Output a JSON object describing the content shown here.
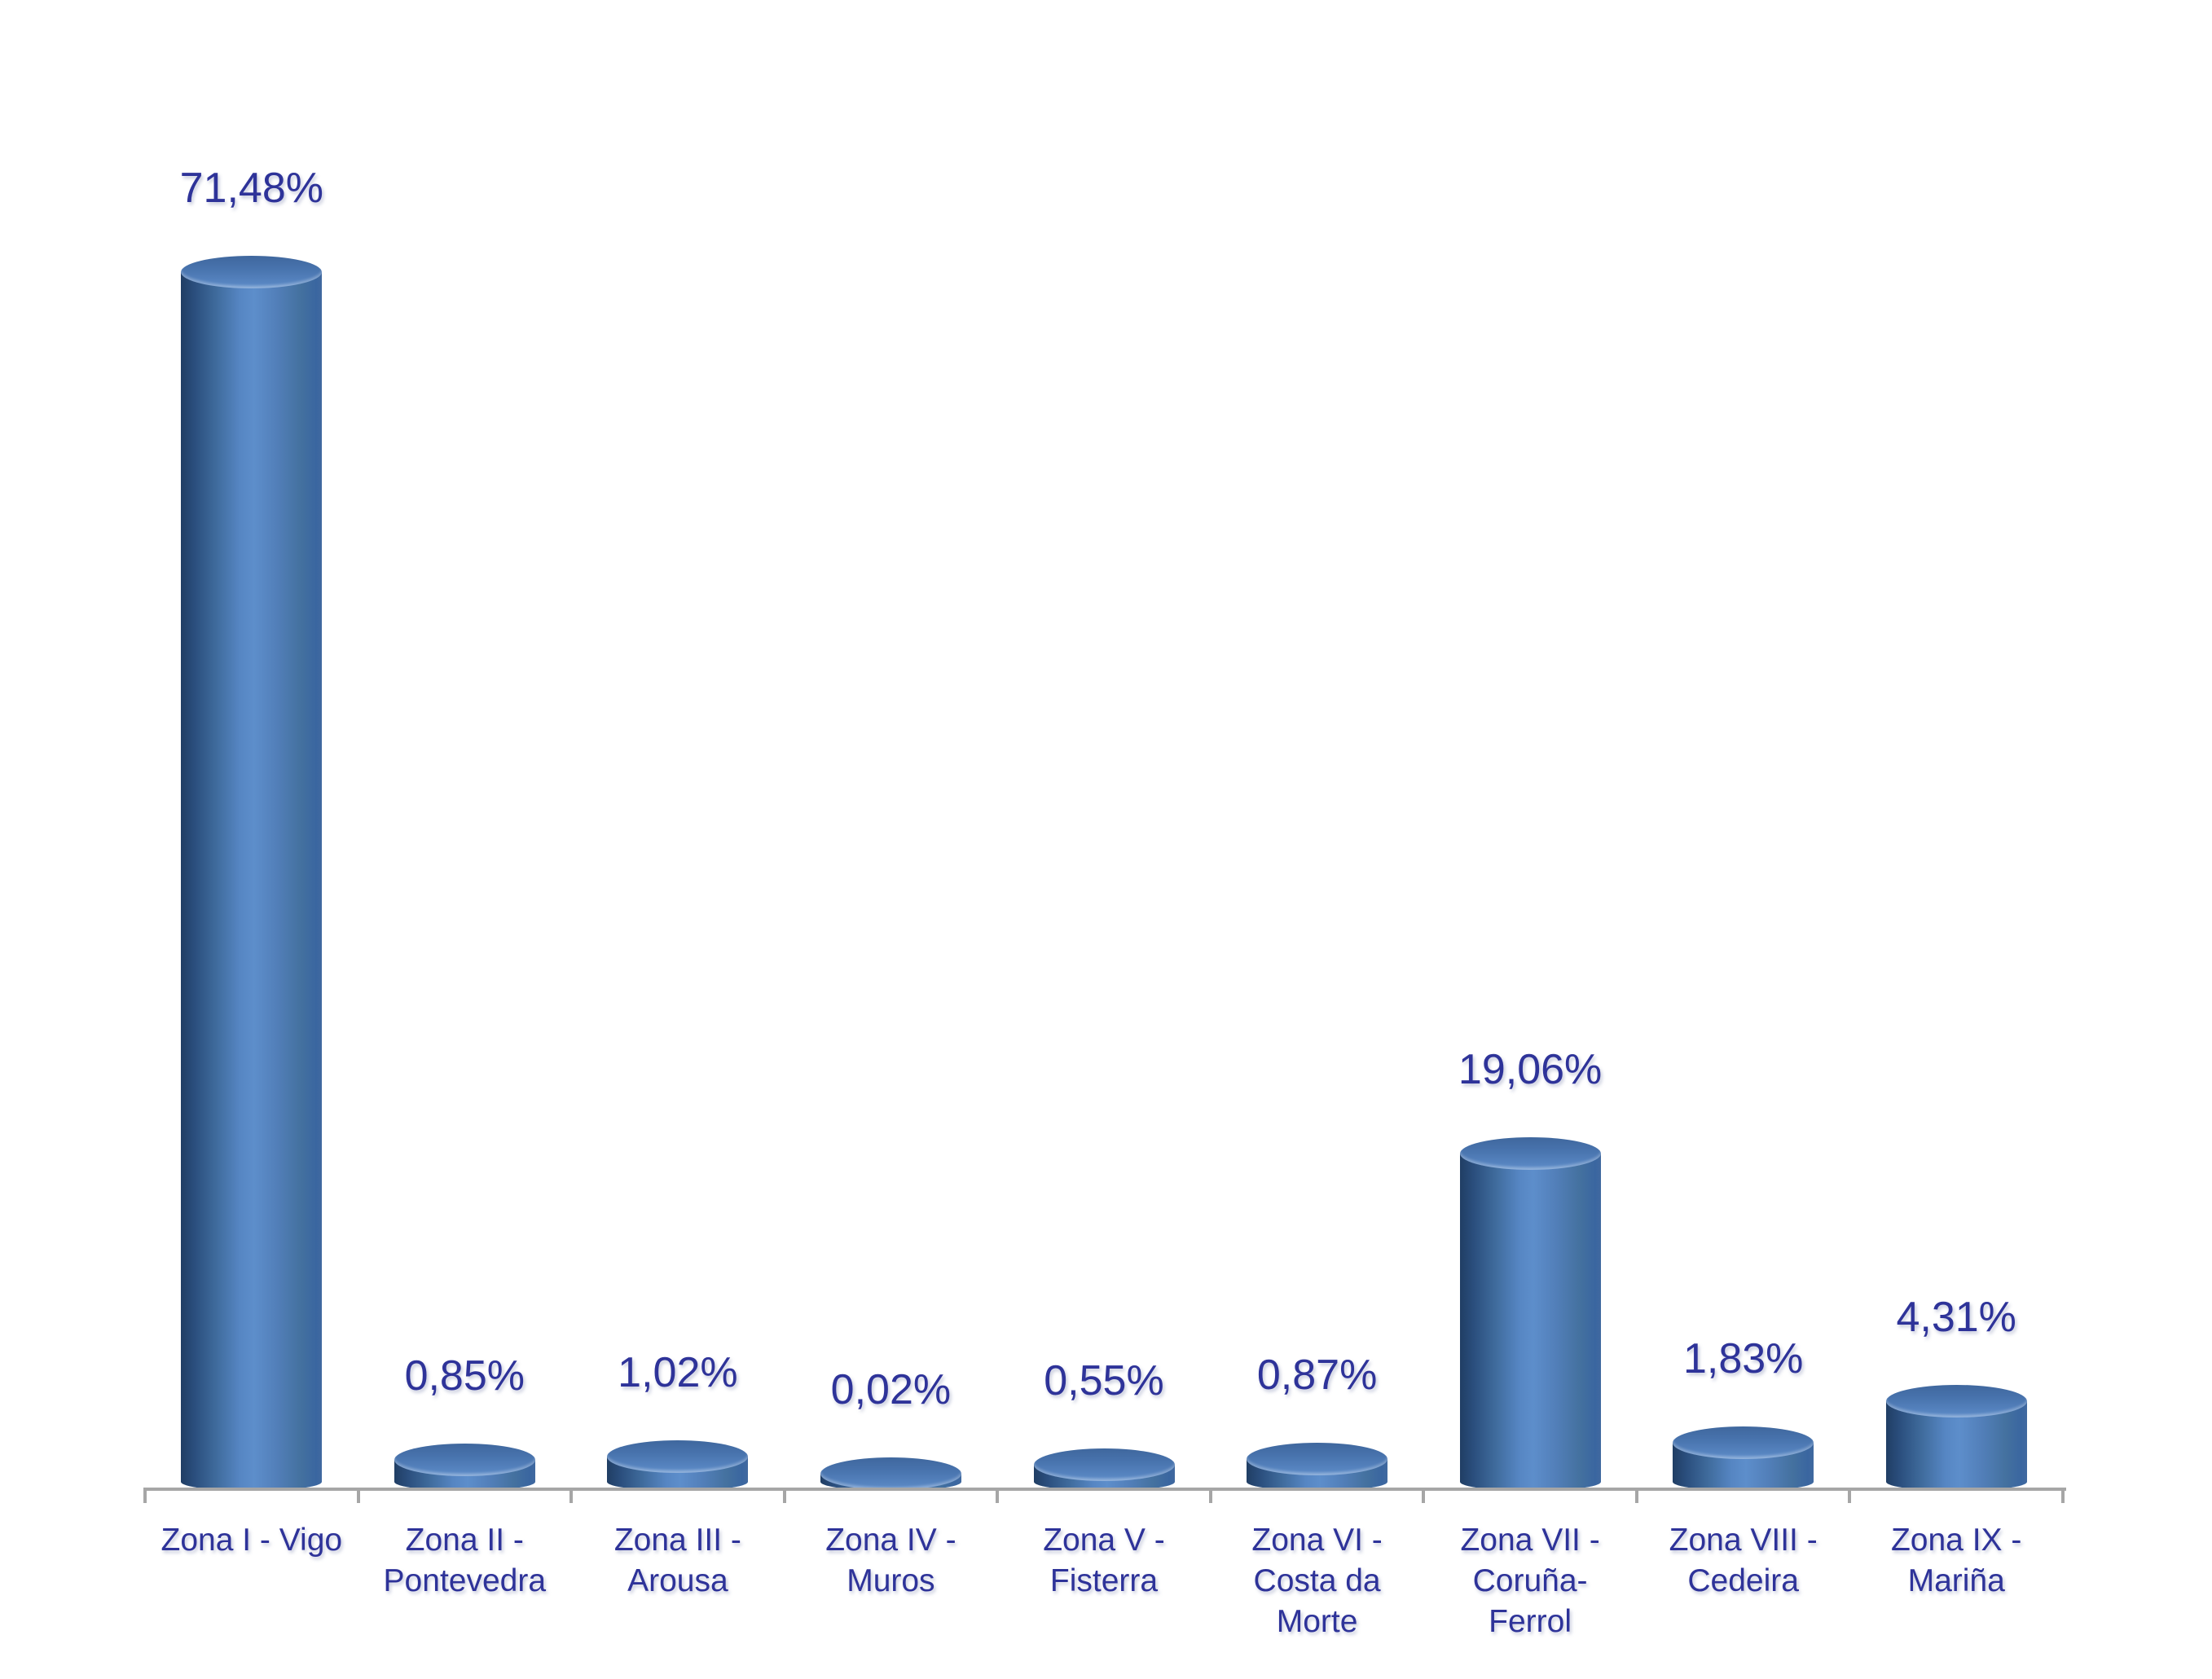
{
  "chart_data": {
    "type": "bar",
    "style": "3d-cylinder",
    "title": "",
    "xlabel": "",
    "ylabel": "",
    "grid": false,
    "legend": false,
    "value_axis_visible": false,
    "ylim": [
      0,
      80
    ],
    "categories": [
      "Zona I - Vigo",
      "Zona II - Pontevedra",
      "Zona III - Arousa",
      "Zona IV - Muros",
      "Zona V - Fisterra",
      "Zona VI - Costa da Morte",
      "Zona VII - Coruña-Ferrol",
      "Zona VIII - Cedeira",
      "Zona IX - Mariña"
    ],
    "category_labels": [
      "Zona I - Vigo",
      "Zona II -\nPontevedra",
      "Zona III -\nArousa",
      "Zona IV -\nMuros",
      "Zona V -\nFisterra",
      "Zona VI -\nCosta da\nMorte",
      "Zona VII -\nCoruña-\nFerrol",
      "Zona VIII -\nCedeira",
      "Zona IX -\nMariña"
    ],
    "values": [
      71.48,
      0.85,
      1.02,
      0.02,
      0.55,
      0.87,
      19.06,
      1.83,
      4.31
    ],
    "value_labels": [
      "71,48%",
      "0,85%",
      "1,02%",
      "0,02%",
      "0,55%",
      "0,87%",
      "19,06%",
      "1,83%",
      "4,31%"
    ],
    "colors": {
      "bar_base": "#4f81bd",
      "bar_gradient_dark": "#203e64",
      "bar_gradient_light": "#5d8ecb",
      "bar_cap_top": "#3f679d",
      "bar_cap_front": "#6b97cf",
      "label_text": "#2e3399",
      "axis_line": "#a6a6a6",
      "background": "#ffffff"
    }
  }
}
